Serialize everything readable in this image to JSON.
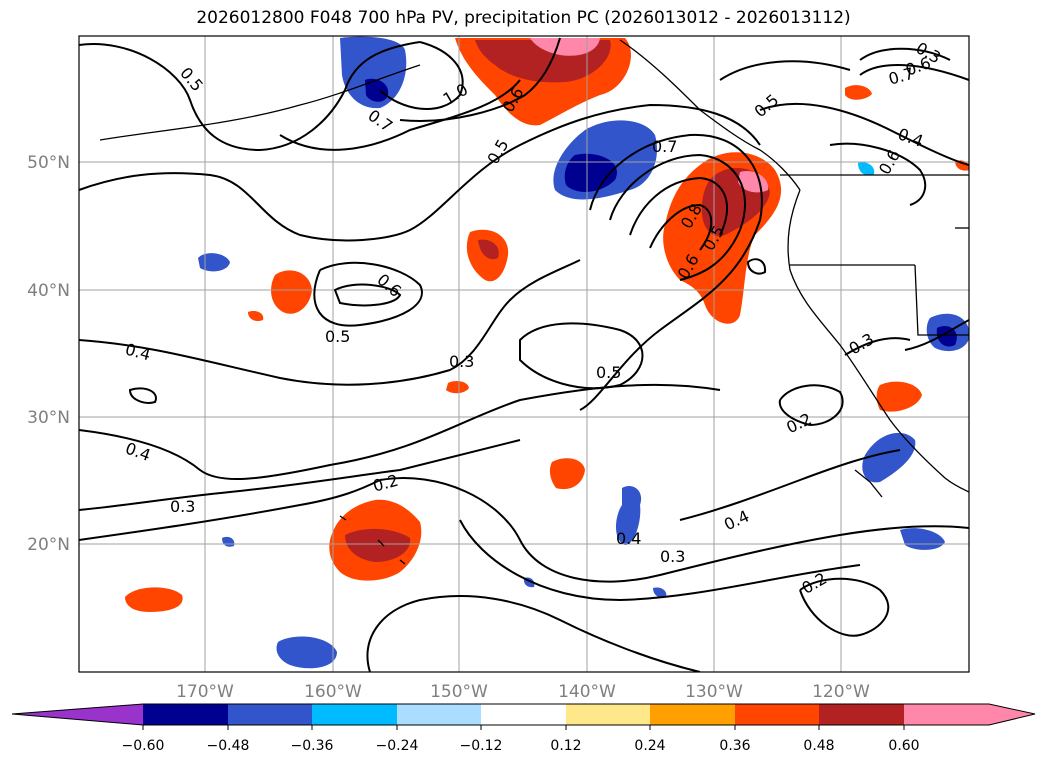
{
  "title": "2026012800 F048 700 hPa PV, precipitation PC (2026013012 - 2026013112)",
  "latitude_labels": [
    "50°N",
    "40°N",
    "30°N",
    "20°N"
  ],
  "longitude_labels": [
    "170°W",
    "160°W",
    "150°W",
    "140°W",
    "130°W",
    "120°W"
  ],
  "contour_labels": [
    "0.5",
    "1.0",
    "0.6",
    "0.7",
    "0.5",
    "0.7",
    "0.5",
    "0.8",
    "0.6",
    "0.5",
    "0.6",
    "0.5",
    "0.6",
    "0.4",
    "0.3",
    "0.5",
    "0.4",
    "0.3",
    "0.2",
    "0.4",
    "0.3",
    "0.2",
    "0.4",
    "0.3",
    "0.2",
    "0.4",
    "0.3",
    "0.6",
    "0.7",
    "0.5",
    "0.5",
    "0.4",
    "0.6"
  ],
  "colorbar": {
    "ticks": [
      "−0.60",
      "−0.48",
      "−0.36",
      "−0.24",
      "−0.12",
      "0.12",
      "0.24",
      "0.36",
      "0.48",
      "0.60"
    ],
    "colors": {
      "below": "#9933cc",
      "c1": "#000090",
      "c2": "#3355cc",
      "c3": "#00bbff",
      "c4": "#aaddff",
      "c5": "#ffffff",
      "c6": "#ffe88a",
      "c7": "#ff9f00",
      "c8": "#ff4500",
      "c9": "#b22222",
      "above": "#ff88aa"
    }
  }
}
